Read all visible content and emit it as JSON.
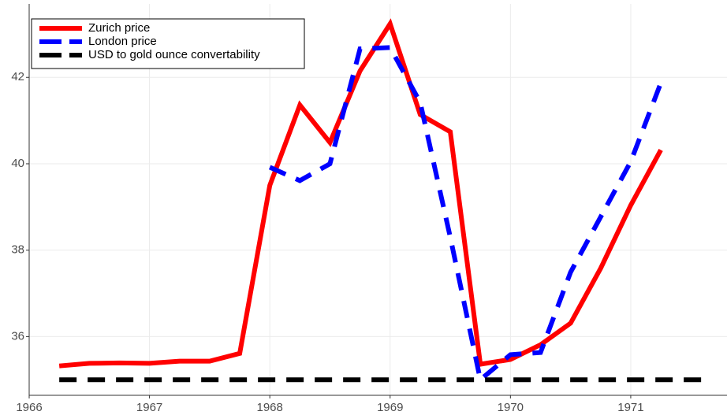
{
  "chart_data": {
    "type": "line",
    "series": [
      {
        "name": "Zurich price",
        "color": "#ff0000",
        "dash": "solid",
        "x": [
          1966.25,
          1966.5,
          1966.75,
          1967,
          1967.25,
          1967.5,
          1967.75,
          1968,
          1968.25,
          1968.5,
          1968.75,
          1969,
          1969.25,
          1969.5,
          1969.75,
          1970,
          1970.25,
          1970.5,
          1970.75,
          1971,
          1971.25
        ],
        "values": [
          35.32,
          35.38,
          35.39,
          35.38,
          35.43,
          35.43,
          35.61,
          39.5,
          41.36,
          40.49,
          42.15,
          43.24,
          41.14,
          40.74,
          35.36,
          35.47,
          35.81,
          36.31,
          37.58,
          39.04,
          40.32
        ]
      },
      {
        "name": "London price",
        "color": "#0000ff",
        "dash": "dashed",
        "x": [
          1968,
          1968.25,
          1968.5,
          1968.75,
          1969,
          1969.25,
          1969.5,
          1969.75,
          1970,
          1970.25,
          1970.5,
          1970.75,
          1971,
          1971.25
        ],
        "values": [
          39.92,
          39.61,
          40.0,
          42.66,
          42.69,
          41.42,
          38.3,
          35.0,
          35.58,
          35.63,
          37.49,
          38.77,
          40.05,
          41.87
        ]
      },
      {
        "name": "USD to gold ounce convertability",
        "color": "#000000",
        "dash": "dashed",
        "x": [
          1966.25,
          1971.6
        ],
        "values": [
          35,
          35
        ]
      }
    ],
    "xlim": [
      1966,
      1971.8
    ],
    "xticks": [
      1966,
      1967,
      1968,
      1969,
      1970,
      1971
    ],
    "ylim": [
      34.64,
      43.7
    ],
    "yticks": [
      36,
      38,
      40,
      42
    ],
    "grid": true,
    "legend": "top-left"
  }
}
